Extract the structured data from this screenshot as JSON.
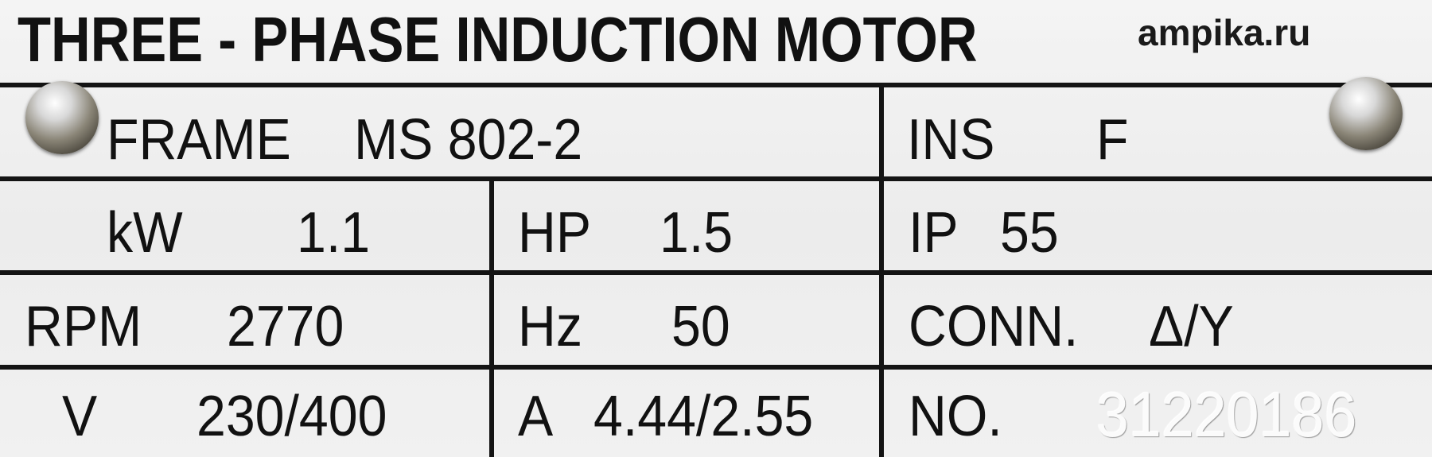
{
  "header": {
    "title": "THREE - PHASE INDUCTION MOTOR",
    "brand": "ampika.ru"
  },
  "rows": {
    "frame": {
      "label": "FRAME",
      "value": "MS 802-2"
    },
    "ins": {
      "label": "INS",
      "value": "F"
    },
    "kw": {
      "label": "kW",
      "value": "1.1"
    },
    "hp": {
      "label": "HP",
      "value": "1.5"
    },
    "ip": {
      "label": "IP",
      "value": "55"
    },
    "rpm": {
      "label": "RPM",
      "value": "2770"
    },
    "hz": {
      "label": "Hz",
      "value": "50"
    },
    "conn": {
      "label": "CONN.",
      "value": "Δ/Y"
    },
    "v": {
      "label": "V",
      "value": "230/400"
    },
    "a": {
      "label": "A",
      "value": "4.44/2.55"
    },
    "no": {
      "label": "NO.",
      "value": "31220186"
    }
  },
  "colors": {
    "plate": "#eeeeee",
    "ink": "#111111",
    "serial": "#fbfbfb"
  },
  "icons": [
    "screw-icon",
    "screw-icon"
  ]
}
